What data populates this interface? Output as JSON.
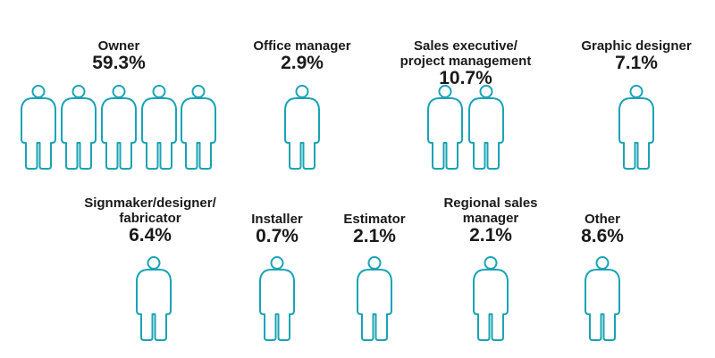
{
  "colors": {
    "fill": "#1aa3b6",
    "outline": "#1aa3b6",
    "empty": "#ffffff"
  },
  "chart_data": {
    "type": "pictograph",
    "unit_note": "",
    "categories": [
      {
        "name_lines": [
          "Owner"
        ],
        "value": 59.3,
        "value_label": "59.3%",
        "icon_fill": [
          1,
          1,
          1,
          1,
          1
        ]
      },
      {
        "name_lines": [
          "Office manager"
        ],
        "value": 2.9,
        "value_label": "2.9%",
        "icon_fill": [
          0.5
        ]
      },
      {
        "name_lines": [
          "Sales executive/",
          "project management"
        ],
        "value": 10.7,
        "value_label": "10.7%",
        "icon_fill": [
          1,
          0
        ]
      },
      {
        "name_lines": [
          "Graphic designer"
        ],
        "value": 7.1,
        "value_label": "7.1%",
        "icon_fill": [
          0.5
        ]
      },
      {
        "name_lines": [
          "Signmaker/designer/",
          "fabricator"
        ],
        "value": 6.4,
        "value_label": "6.4%",
        "icon_fill": [
          0.5
        ]
      },
      {
        "name_lines": [
          "Installer"
        ],
        "value": 0.7,
        "value_label": "0.7%",
        "icon_fill": [
          0
        ]
      },
      {
        "name_lines": [
          "Estimator"
        ],
        "value": 2.1,
        "value_label": "2.1%",
        "icon_fill": [
          0.2
        ]
      },
      {
        "name_lines": [
          "Regional sales",
          "manager"
        ],
        "value": 2.1,
        "value_label": "2.1%",
        "icon_fill": [
          0.2
        ]
      },
      {
        "name_lines": [
          "Other"
        ],
        "value": 8.6,
        "value_label": "8.6%",
        "icon_fill": [
          1
        ]
      }
    ]
  }
}
